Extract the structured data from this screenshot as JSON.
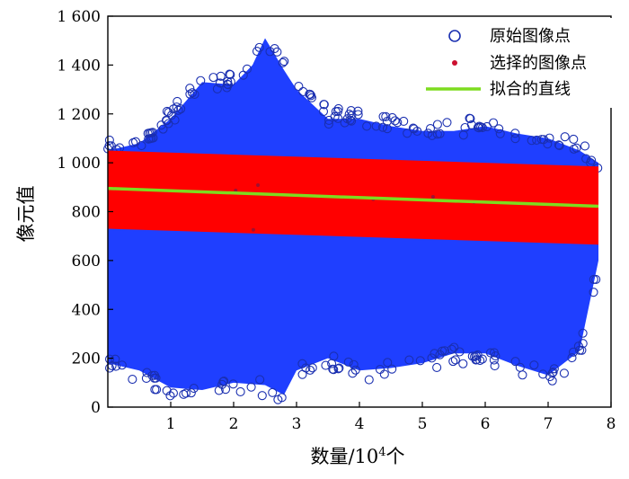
{
  "chart_data": {
    "type": "scatter",
    "xlabel_main": "数量/10",
    "xlabel_sup": "4",
    "xlabel_suffix": "个",
    "ylabel": "像元值",
    "xlim": [
      0,
      8
    ],
    "ylim": [
      0,
      1600
    ],
    "x_ticks": [
      1,
      2,
      3,
      4,
      5,
      6,
      7,
      8
    ],
    "y_ticks": [
      0,
      200,
      400,
      600,
      800,
      1000,
      1200,
      1400,
      1600
    ],
    "y_tick_labels": [
      "0",
      "200",
      "400",
      "600",
      "800",
      "1 000",
      "1 200",
      "1 400",
      "1 600"
    ],
    "grid": false,
    "legend_position": "top-right",
    "legend": [
      "原始图像点",
      "选择的图像点",
      "拟合的直线"
    ],
    "colors": {
      "original": "#1f3fff",
      "original_edge": "#1a2fb0",
      "selected": "#ff0000",
      "fit": "#7ddc1f"
    },
    "series": [
      {
        "name": "原始图像点",
        "kind": "point-cloud-envelope",
        "x_range": [
          0,
          7.8
        ],
        "upper_envelope": [
          [
            0,
            1050
          ],
          [
            0.5,
            1080
          ],
          [
            1,
            1180
          ],
          [
            1.5,
            1330
          ],
          [
            2,
            1320
          ],
          [
            2.3,
            1400
          ],
          [
            2.5,
            1510
          ],
          [
            2.8,
            1380
          ],
          [
            3,
            1300
          ],
          [
            3.5,
            1180
          ],
          [
            4,
            1180
          ],
          [
            4.5,
            1150
          ],
          [
            5,
            1130
          ],
          [
            5.5,
            1130
          ],
          [
            6,
            1150
          ],
          [
            6.5,
            1120
          ],
          [
            7,
            1100
          ],
          [
            7.5,
            1050
          ],
          [
            7.8,
            1000
          ]
        ],
        "lower_envelope": [
          [
            0,
            180
          ],
          [
            0.5,
            150
          ],
          [
            1,
            80
          ],
          [
            1.5,
            70
          ],
          [
            2,
            100
          ],
          [
            2.5,
            90
          ],
          [
            2.8,
            50
          ],
          [
            3,
            150
          ],
          [
            3.5,
            200
          ],
          [
            4,
            150
          ],
          [
            4.5,
            160
          ],
          [
            5,
            180
          ],
          [
            5.5,
            220
          ],
          [
            6,
            220
          ],
          [
            6.5,
            170
          ],
          [
            7,
            130
          ],
          [
            7.5,
            230
          ],
          [
            7.8,
            600
          ]
        ]
      },
      {
        "name": "选择的图像点",
        "kind": "band",
        "x_range": [
          0,
          7.8
        ],
        "upper": [
          [
            0,
            1050
          ],
          [
            7.8,
            985
          ]
        ],
        "lower": [
          [
            0,
            730
          ],
          [
            7.8,
            665
          ]
        ]
      },
      {
        "name": "拟合的直线",
        "kind": "line",
        "x": [
          0,
          7.8
        ],
        "y": [
          895,
          822
        ]
      }
    ]
  }
}
